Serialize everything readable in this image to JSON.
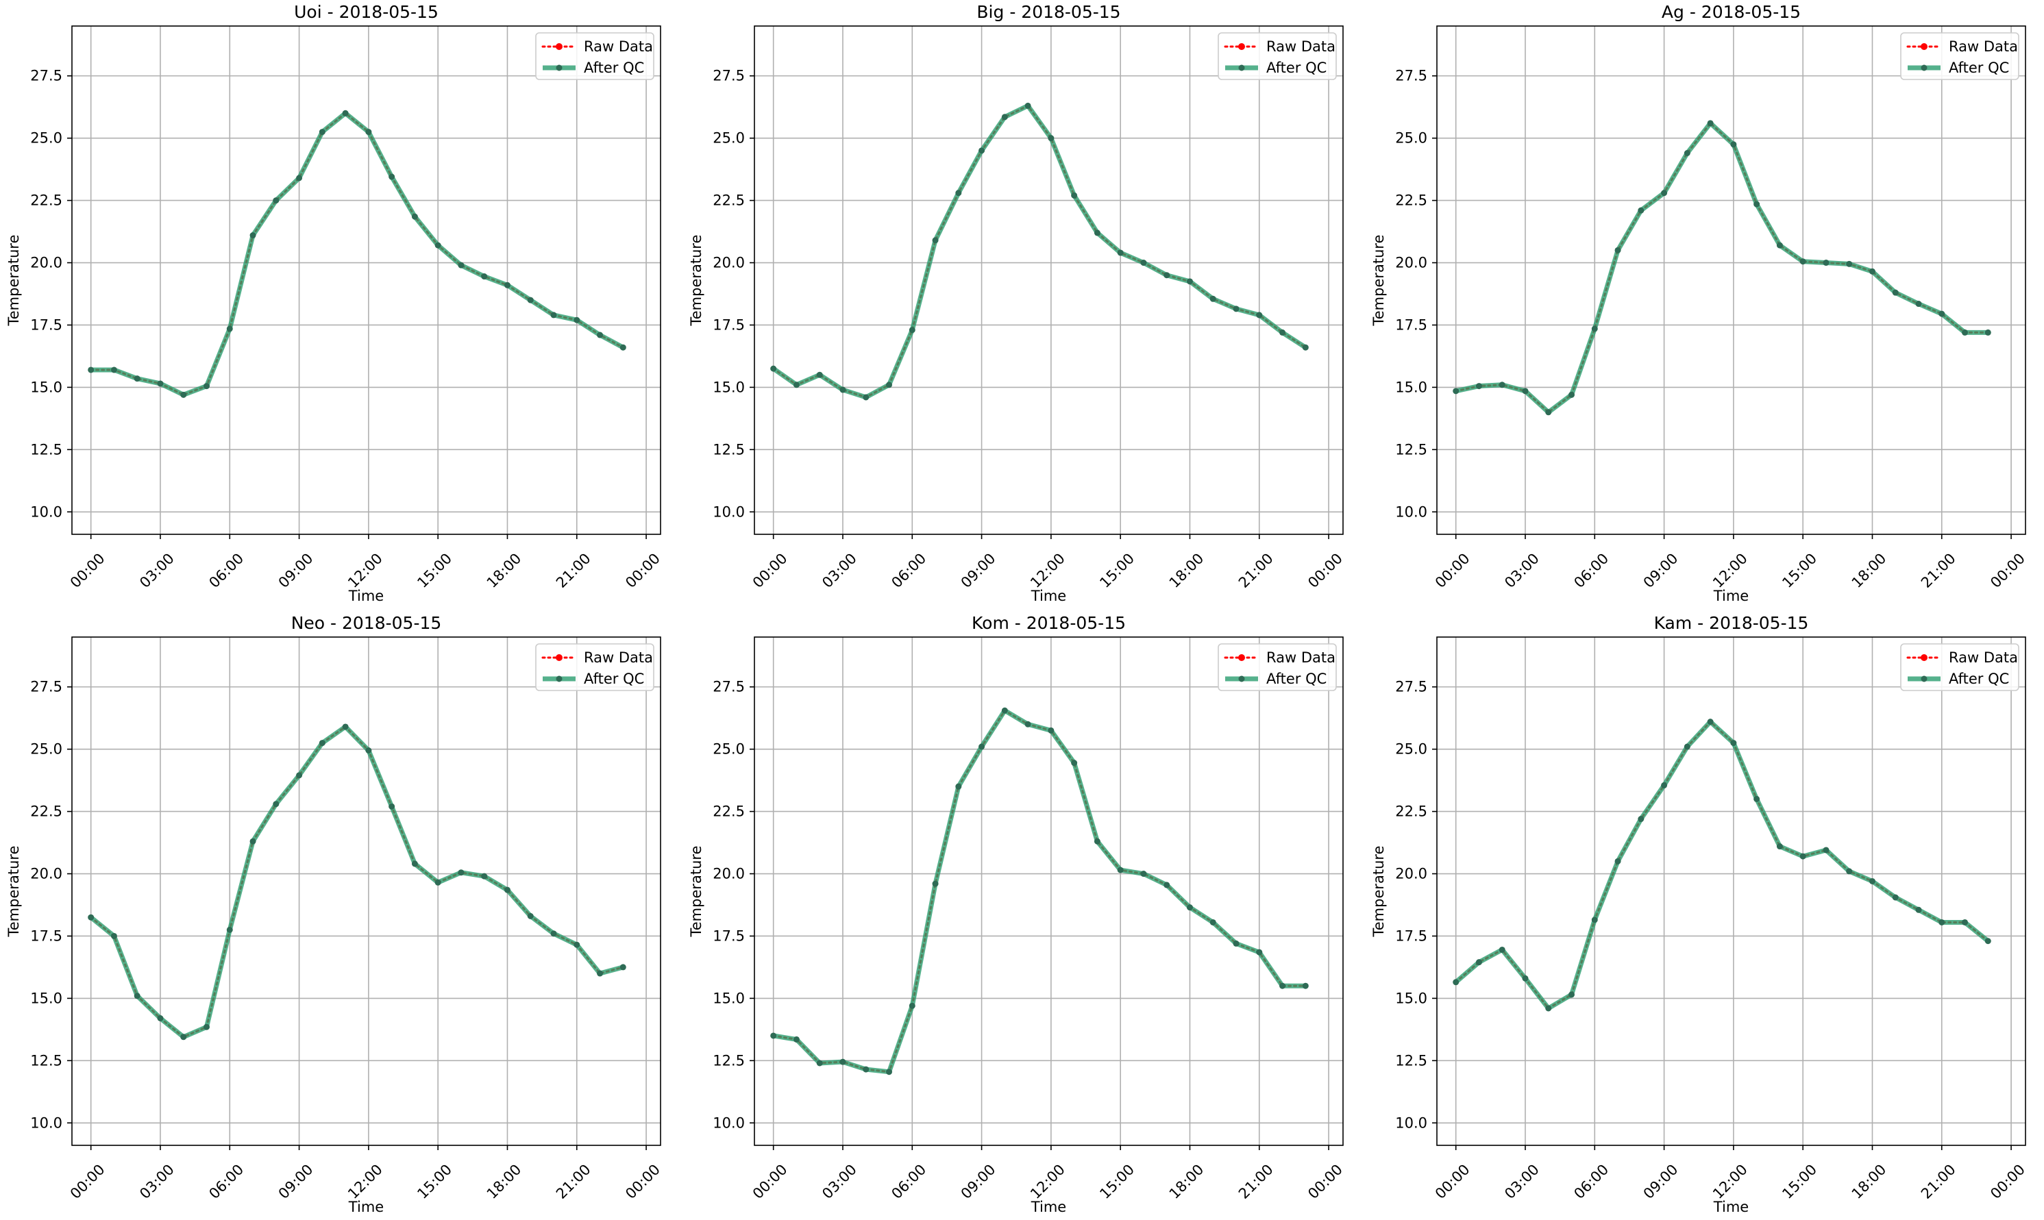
{
  "legend": {
    "raw_label": "Raw Data",
    "qc_label": "After QC"
  },
  "colors": {
    "raw": "#ff0000",
    "qc": "#2a9d6f",
    "qc_marker": "#2e6b55",
    "grid": "#b0b0b0"
  },
  "chart_data": [
    {
      "type": "line",
      "title": "Uoi - 2018-05-15",
      "xlabel": "Time",
      "ylabel": "Temperature",
      "x_ticks": [
        "00:00",
        "03:00",
        "06:00",
        "09:00",
        "12:00",
        "15:00",
        "18:00",
        "21:00",
        "00:00"
      ],
      "y_ticks": [
        "10.0",
        "12.5",
        "15.0",
        "17.5",
        "20.0",
        "22.5",
        "25.0",
        "27.5"
      ],
      "ylim": [
        9.1,
        29.5
      ],
      "x": [
        "00:00",
        "01:00",
        "02:00",
        "03:00",
        "04:00",
        "05:00",
        "06:00",
        "07:00",
        "08:00",
        "09:00",
        "10:00",
        "11:00",
        "12:00",
        "13:00",
        "14:00",
        "15:00",
        "16:00",
        "17:00",
        "18:00",
        "19:00",
        "20:00",
        "21:00",
        "22:00",
        "23:00"
      ],
      "grid": true,
      "legend_position": "upper right",
      "series": [
        {
          "name": "Raw Data",
          "values": [
            15.7,
            15.7,
            15.35,
            15.15,
            14.7,
            15.05,
            17.35,
            21.1,
            22.5,
            23.4,
            25.25,
            26.0,
            25.25,
            23.45,
            21.85,
            20.7,
            19.9,
            19.45,
            19.1,
            18.5,
            17.9,
            17.7,
            17.1,
            16.6
          ]
        },
        {
          "name": "After QC",
          "values": [
            15.7,
            15.7,
            15.35,
            15.15,
            14.7,
            15.05,
            17.35,
            21.1,
            22.5,
            23.4,
            25.25,
            26.0,
            25.25,
            23.45,
            21.85,
            20.7,
            19.9,
            19.45,
            19.1,
            18.5,
            17.9,
            17.7,
            17.1,
            16.6
          ]
        }
      ]
    },
    {
      "type": "line",
      "title": "Big - 2018-05-15",
      "xlabel": "Time",
      "ylabel": "Temperature",
      "x_ticks": [
        "00:00",
        "03:00",
        "06:00",
        "09:00",
        "12:00",
        "15:00",
        "18:00",
        "21:00",
        "00:00"
      ],
      "y_ticks": [
        "10.0",
        "12.5",
        "15.0",
        "17.5",
        "20.0",
        "22.5",
        "25.0",
        "27.5"
      ],
      "ylim": [
        9.1,
        29.5
      ],
      "x": [
        "00:00",
        "01:00",
        "02:00",
        "03:00",
        "04:00",
        "05:00",
        "06:00",
        "07:00",
        "08:00",
        "09:00",
        "10:00",
        "11:00",
        "12:00",
        "13:00",
        "14:00",
        "15:00",
        "16:00",
        "17:00",
        "18:00",
        "19:00",
        "20:00",
        "21:00",
        "22:00",
        "23:00"
      ],
      "grid": true,
      "legend_position": "upper right",
      "series": [
        {
          "name": "Raw Data",
          "values": [
            15.75,
            15.1,
            15.5,
            14.9,
            14.6,
            15.1,
            17.3,
            20.9,
            22.8,
            24.5,
            25.85,
            26.3,
            25.0,
            22.7,
            21.2,
            20.4,
            20.0,
            19.5,
            19.25,
            18.55,
            18.15,
            17.9,
            17.2,
            16.6
          ]
        },
        {
          "name": "After QC",
          "values": [
            15.75,
            15.1,
            15.5,
            14.9,
            14.6,
            15.1,
            17.3,
            20.9,
            22.8,
            24.5,
            25.85,
            26.3,
            25.0,
            22.7,
            21.2,
            20.4,
            20.0,
            19.5,
            19.25,
            18.55,
            18.15,
            17.9,
            17.2,
            16.6
          ]
        }
      ]
    },
    {
      "type": "line",
      "title": "Ag - 2018-05-15",
      "xlabel": "Time",
      "ylabel": "Temperature",
      "x_ticks": [
        "00:00",
        "03:00",
        "06:00",
        "09:00",
        "12:00",
        "15:00",
        "18:00",
        "21:00",
        "00:00"
      ],
      "y_ticks": [
        "10.0",
        "12.5",
        "15.0",
        "17.5",
        "20.0",
        "22.5",
        "25.0",
        "27.5"
      ],
      "ylim": [
        9.1,
        29.5
      ],
      "x": [
        "00:00",
        "01:00",
        "02:00",
        "03:00",
        "04:00",
        "05:00",
        "06:00",
        "07:00",
        "08:00",
        "09:00",
        "10:00",
        "11:00",
        "12:00",
        "13:00",
        "14:00",
        "15:00",
        "16:00",
        "17:00",
        "18:00",
        "19:00",
        "20:00",
        "21:00",
        "22:00",
        "23:00"
      ],
      "grid": true,
      "legend_position": "upper right",
      "series": [
        {
          "name": "Raw Data",
          "values": [
            14.85,
            15.05,
            15.1,
            14.85,
            14.0,
            14.7,
            17.35,
            20.5,
            22.1,
            22.8,
            24.4,
            25.6,
            24.75,
            22.35,
            20.7,
            20.05,
            20.0,
            19.95,
            19.65,
            18.8,
            18.35,
            17.95,
            17.2,
            17.2
          ]
        },
        {
          "name": "After QC",
          "values": [
            14.85,
            15.05,
            15.1,
            14.85,
            14.0,
            14.7,
            17.35,
            20.5,
            22.1,
            22.8,
            24.4,
            25.6,
            24.75,
            22.35,
            20.7,
            20.05,
            20.0,
            19.95,
            19.65,
            18.8,
            18.35,
            17.95,
            17.2,
            17.2
          ]
        }
      ]
    },
    {
      "type": "line",
      "title": "Neo - 2018-05-15",
      "xlabel": "Time",
      "ylabel": "Temperature",
      "x_ticks": [
        "00:00",
        "03:00",
        "06:00",
        "09:00",
        "12:00",
        "15:00",
        "18:00",
        "21:00",
        "00:00"
      ],
      "y_ticks": [
        "10.0",
        "12.5",
        "15.0",
        "17.5",
        "20.0",
        "22.5",
        "25.0",
        "27.5"
      ],
      "ylim": [
        9.1,
        29.5
      ],
      "x": [
        "00:00",
        "01:00",
        "02:00",
        "03:00",
        "04:00",
        "05:00",
        "06:00",
        "07:00",
        "08:00",
        "09:00",
        "10:00",
        "11:00",
        "12:00",
        "13:00",
        "14:00",
        "15:00",
        "16:00",
        "17:00",
        "18:00",
        "19:00",
        "20:00",
        "21:00",
        "22:00",
        "23:00"
      ],
      "grid": true,
      "legend_position": "upper right",
      "series": [
        {
          "name": "Raw Data",
          "values": [
            18.25,
            17.5,
            15.1,
            14.2,
            13.45,
            13.85,
            17.75,
            21.3,
            22.8,
            23.95,
            25.25,
            25.9,
            24.95,
            22.7,
            20.4,
            19.65,
            20.05,
            19.9,
            19.35,
            18.3,
            17.6,
            17.15,
            16.0,
            16.25
          ]
        },
        {
          "name": "After QC",
          "values": [
            18.25,
            17.5,
            15.1,
            14.2,
            13.45,
            13.85,
            17.75,
            21.3,
            22.8,
            23.95,
            25.25,
            25.9,
            24.95,
            22.7,
            20.4,
            19.65,
            20.05,
            19.9,
            19.35,
            18.3,
            17.6,
            17.15,
            16.0,
            16.25
          ]
        }
      ]
    },
    {
      "type": "line",
      "title": "Kom - 2018-05-15",
      "xlabel": "Time",
      "ylabel": "Temperature",
      "x_ticks": [
        "00:00",
        "03:00",
        "06:00",
        "09:00",
        "12:00",
        "15:00",
        "18:00",
        "21:00",
        "00:00"
      ],
      "y_ticks": [
        "10.0",
        "12.5",
        "15.0",
        "17.5",
        "20.0",
        "22.5",
        "25.0",
        "27.5"
      ],
      "ylim": [
        9.1,
        29.5
      ],
      "x": [
        "00:00",
        "01:00",
        "02:00",
        "03:00",
        "04:00",
        "05:00",
        "06:00",
        "07:00",
        "08:00",
        "09:00",
        "10:00",
        "11:00",
        "12:00",
        "13:00",
        "14:00",
        "15:00",
        "16:00",
        "17:00",
        "18:00",
        "19:00",
        "20:00",
        "21:00",
        "22:00",
        "23:00"
      ],
      "grid": true,
      "legend_position": "upper right",
      "series": [
        {
          "name": "Raw Data",
          "values": [
            13.5,
            13.35,
            12.4,
            12.45,
            12.15,
            12.05,
            14.7,
            19.6,
            23.5,
            25.1,
            26.55,
            26.0,
            25.75,
            24.45,
            21.3,
            20.15,
            20.0,
            19.55,
            18.65,
            18.05,
            17.2,
            16.85,
            15.5,
            15.5
          ]
        },
        {
          "name": "After QC",
          "values": [
            13.5,
            13.35,
            12.4,
            12.45,
            12.15,
            12.05,
            14.7,
            19.6,
            23.5,
            25.1,
            26.55,
            26.0,
            25.75,
            24.45,
            21.3,
            20.15,
            20.0,
            19.55,
            18.65,
            18.05,
            17.2,
            16.85,
            15.5,
            15.5
          ]
        }
      ]
    },
    {
      "type": "line",
      "title": "Kam - 2018-05-15",
      "xlabel": "Time",
      "ylabel": "Temperature",
      "x_ticks": [
        "00:00",
        "03:00",
        "06:00",
        "09:00",
        "12:00",
        "15:00",
        "18:00",
        "21:00",
        "00:00"
      ],
      "y_ticks": [
        "10.0",
        "12.5",
        "15.0",
        "17.5",
        "20.0",
        "22.5",
        "25.0",
        "27.5"
      ],
      "ylim": [
        9.1,
        29.5
      ],
      "x": [
        "00:00",
        "01:00",
        "02:00",
        "03:00",
        "04:00",
        "05:00",
        "06:00",
        "07:00",
        "08:00",
        "09:00",
        "10:00",
        "11:00",
        "12:00",
        "13:00",
        "14:00",
        "15:00",
        "16:00",
        "17:00",
        "18:00",
        "19:00",
        "20:00",
        "21:00",
        "22:00",
        "23:00"
      ],
      "grid": true,
      "legend_position": "upper right",
      "series": [
        {
          "name": "Raw Data",
          "values": [
            15.65,
            16.45,
            16.95,
            15.8,
            14.6,
            15.15,
            18.15,
            20.5,
            22.2,
            23.55,
            25.1,
            26.1,
            25.25,
            23.0,
            21.1,
            20.7,
            20.95,
            20.1,
            19.7,
            19.05,
            18.55,
            18.05,
            18.05,
            17.3
          ]
        },
        {
          "name": "After QC",
          "values": [
            15.65,
            16.45,
            16.95,
            15.8,
            14.6,
            15.15,
            18.15,
            20.5,
            22.2,
            23.55,
            25.1,
            26.1,
            25.25,
            23.0,
            21.1,
            20.7,
            20.95,
            20.1,
            19.7,
            19.05,
            18.55,
            18.05,
            18.05,
            17.3
          ]
        }
      ]
    }
  ]
}
